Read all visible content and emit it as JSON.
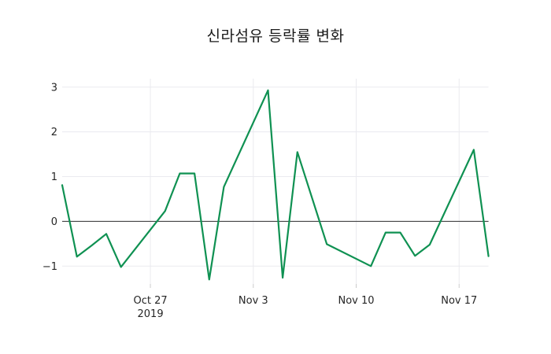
{
  "page": {
    "background": "#ffffff"
  },
  "chart_data": {
    "type": "line",
    "title": "신라섬유 등락률 변화",
    "xlabel": "",
    "ylabel": "",
    "grid": true,
    "legend": false,
    "line_color": "#0f9152",
    "zero_line_color": "#2f2f2f",
    "grid_color": "#eaeaef",
    "axis_tick_color": "#cccccc",
    "tick_label_color": "#262626",
    "title_color": "#1a1a1a",
    "x_unit": "date",
    "xlim_days": [
      0,
      29
    ],
    "ylim": [
      -1.4,
      3.19
    ],
    "points": [
      {
        "date": "2019-10-21",
        "day": 0,
        "value": 0.81
      },
      {
        "date": "2019-10-22",
        "day": 1,
        "value": -0.79
      },
      {
        "date": "2019-10-23",
        "day": 2,
        "value": -0.54
      },
      {
        "date": "2019-10-24",
        "day": 3,
        "value": -0.28
      },
      {
        "date": "2019-10-25",
        "day": 4,
        "value": -1.02
      },
      {
        "date": "2019-10-28",
        "day": 7,
        "value": 0.23
      },
      {
        "date": "2019-10-29",
        "day": 8,
        "value": 1.07
      },
      {
        "date": "2019-10-30",
        "day": 9,
        "value": 1.07
      },
      {
        "date": "2019-10-31",
        "day": 10,
        "value": -1.3
      },
      {
        "date": "2019-11-01",
        "day": 11,
        "value": 0.77
      },
      {
        "date": "2019-11-04",
        "day": 14,
        "value": 2.93
      },
      {
        "date": "2019-11-05",
        "day": 15,
        "value": -1.26
      },
      {
        "date": "2019-11-06",
        "day": 16,
        "value": 1.55
      },
      {
        "date": "2019-11-07",
        "day": 17,
        "value": 0.52
      },
      {
        "date": "2019-11-08",
        "day": 18,
        "value": -0.51
      },
      {
        "date": "2019-11-11",
        "day": 21,
        "value": -1.0
      },
      {
        "date": "2019-11-12",
        "day": 22,
        "value": -0.25
      },
      {
        "date": "2019-11-13",
        "day": 23,
        "value": -0.25
      },
      {
        "date": "2019-11-14",
        "day": 24,
        "value": -0.77
      },
      {
        "date": "2019-11-15",
        "day": 25,
        "value": -0.52
      },
      {
        "date": "2019-11-18",
        "day": 28,
        "value": 1.6
      },
      {
        "date": "2019-11-19",
        "day": 29,
        "value": -0.78
      }
    ],
    "x_ticks": [
      {
        "day": 6,
        "label": "Oct 27",
        "sublabel": "2019"
      },
      {
        "day": 13,
        "label": "Nov 3",
        "sublabel": ""
      },
      {
        "day": 20,
        "label": "Nov 10",
        "sublabel": ""
      },
      {
        "day": 27,
        "label": "Nov 17",
        "sublabel": ""
      }
    ],
    "y_ticks": [
      {
        "value": 3,
        "label": "3"
      },
      {
        "value": 2,
        "label": "2"
      },
      {
        "value": 1,
        "label": "1"
      },
      {
        "value": 0,
        "label": "0"
      },
      {
        "value": -1,
        "label": "−1"
      }
    ]
  }
}
